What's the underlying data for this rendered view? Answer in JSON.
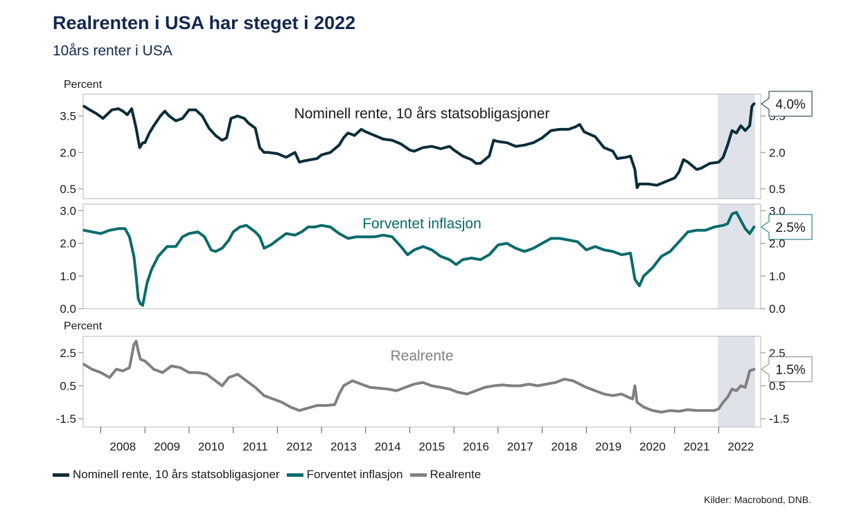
{
  "header": {
    "title": "Realrenten i USA har steget i 2022",
    "subtitle": "10års renter i USA"
  },
  "source": "Kilder: Macrobond, DNB.",
  "colors": {
    "nominal": "#0b2d3a",
    "inflation": "#0a6b6b",
    "real": "#808080",
    "highlight": "#dfe2e8",
    "frame": "#b5b5b5"
  },
  "highlight_period": [
    2021.98,
    2022.82
  ],
  "x_axis": {
    "range": [
      2007.6,
      2022.95
    ],
    "tick_labels": [
      "2008",
      "2009",
      "2010",
      "2011",
      "2012",
      "2013",
      "2014",
      "2015",
      "2016",
      "2017",
      "2018",
      "2019",
      "2020",
      "2021",
      "2022"
    ]
  },
  "legend": [
    {
      "key": "nominal",
      "label": "Nominell rente, 10 års statsobligasjoner"
    },
    {
      "key": "inflation",
      "label": "Forventet inflasjon"
    },
    {
      "key": "real",
      "label": "Realrente"
    }
  ],
  "chart_data": [
    {
      "type": "line",
      "ylabel": "Percent",
      "panel_label": "Nominell rente, 10 års statsobligasjoner",
      "series_key": "nominal",
      "end_label": "4.0%",
      "ylim": [
        0.1,
        4.4
      ],
      "y_ticks": [
        "0.5",
        "2.0",
        "3.5"
      ],
      "x": [
        2007.62,
        2007.75,
        2007.9,
        2008.05,
        2008.25,
        2008.4,
        2008.5,
        2008.6,
        2008.7,
        2008.8,
        2008.88,
        2008.95,
        2009.0,
        2009.1,
        2009.2,
        2009.35,
        2009.45,
        2009.55,
        2009.7,
        2009.85,
        2010.0,
        2010.15,
        2010.3,
        2010.45,
        2010.6,
        2010.75,
        2010.85,
        2010.95,
        2011.1,
        2011.25,
        2011.35,
        2011.5,
        2011.6,
        2011.7,
        2011.8,
        2012.0,
        2012.2,
        2012.4,
        2012.5,
        2012.6,
        2012.75,
        2012.9,
        2013.0,
        2013.2,
        2013.4,
        2013.5,
        2013.6,
        2013.75,
        2013.9,
        2014.0,
        2014.2,
        2014.4,
        2014.6,
        2014.8,
        2015.0,
        2015.1,
        2015.3,
        2015.5,
        2015.7,
        2015.9,
        2016.0,
        2016.2,
        2016.4,
        2016.5,
        2016.6,
        2016.8,
        2016.9,
        2017.0,
        2017.2,
        2017.4,
        2017.6,
        2017.8,
        2018.0,
        2018.2,
        2018.4,
        2018.6,
        2018.75,
        2018.85,
        2018.95,
        2019.2,
        2019.4,
        2019.6,
        2019.7,
        2019.9,
        2020.0,
        2020.1,
        2020.15,
        2020.2,
        2020.4,
        2020.6,
        2020.8,
        2021.0,
        2021.1,
        2021.2,
        2021.3,
        2021.5,
        2021.6,
        2021.8,
        2022.0,
        2022.1,
        2022.2,
        2022.3,
        2022.4,
        2022.5,
        2022.6,
        2022.7,
        2022.75,
        2022.8
      ],
      "y": [
        3.9,
        3.75,
        3.6,
        3.4,
        3.75,
        3.8,
        3.7,
        3.55,
        3.8,
        3.0,
        2.2,
        2.4,
        2.4,
        2.8,
        3.1,
        3.5,
        3.7,
        3.5,
        3.3,
        3.4,
        3.75,
        3.75,
        3.5,
        3.0,
        2.7,
        2.5,
        2.6,
        3.4,
        3.5,
        3.4,
        3.2,
        3.0,
        2.2,
        2.0,
        2.0,
        1.95,
        1.8,
        2.0,
        1.6,
        1.65,
        1.7,
        1.75,
        1.9,
        2.0,
        2.3,
        2.6,
        2.8,
        2.7,
        2.95,
        2.85,
        2.7,
        2.55,
        2.5,
        2.35,
        2.1,
        2.05,
        2.2,
        2.25,
        2.15,
        2.25,
        2.1,
        1.85,
        1.7,
        1.55,
        1.55,
        1.85,
        2.5,
        2.45,
        2.4,
        2.25,
        2.3,
        2.4,
        2.6,
        2.9,
        2.95,
        2.95,
        3.05,
        3.15,
        2.85,
        2.65,
        2.2,
        2.05,
        1.75,
        1.8,
        1.85,
        1.3,
        0.55,
        0.7,
        0.7,
        0.65,
        0.8,
        0.95,
        1.2,
        1.7,
        1.6,
        1.3,
        1.35,
        1.55,
        1.6,
        1.8,
        2.3,
        2.9,
        2.8,
        3.1,
        2.9,
        3.1,
        3.9,
        4.0
      ]
    },
    {
      "type": "line",
      "panel_label": "Forventet inflasjon",
      "series_key": "inflation",
      "end_label": "2.5%",
      "ylim": [
        0.0,
        3.2
      ],
      "y_ticks": [
        "0.0",
        "1.0",
        "2.0",
        "3.0"
      ],
      "x": [
        2007.62,
        2007.8,
        2008.0,
        2008.2,
        2008.4,
        2008.55,
        2008.65,
        2008.75,
        2008.8,
        2008.85,
        2008.9,
        2008.95,
        2009.05,
        2009.15,
        2009.3,
        2009.5,
        2009.7,
        2009.85,
        2010.0,
        2010.2,
        2010.35,
        2010.5,
        2010.6,
        2010.75,
        2010.9,
        2011.0,
        2011.15,
        2011.3,
        2011.5,
        2011.6,
        2011.7,
        2011.85,
        2012.0,
        2012.2,
        2012.4,
        2012.55,
        2012.7,
        2012.85,
        2013.0,
        2013.2,
        2013.4,
        2013.6,
        2013.8,
        2014.0,
        2014.2,
        2014.4,
        2014.6,
        2014.8,
        2014.95,
        2015.1,
        2015.3,
        2015.5,
        2015.7,
        2015.9,
        2016.05,
        2016.2,
        2016.4,
        2016.6,
        2016.8,
        2017.0,
        2017.2,
        2017.4,
        2017.6,
        2017.8,
        2018.0,
        2018.2,
        2018.4,
        2018.6,
        2018.8,
        2019.0,
        2019.2,
        2019.4,
        2019.6,
        2019.8,
        2020.0,
        2020.1,
        2020.2,
        2020.3,
        2020.5,
        2020.7,
        2020.9,
        2021.1,
        2021.3,
        2021.5,
        2021.7,
        2021.9,
        2022.1,
        2022.2,
        2022.3,
        2022.4,
        2022.5,
        2022.6,
        2022.7,
        2022.8
      ],
      "y": [
        2.4,
        2.35,
        2.3,
        2.4,
        2.45,
        2.45,
        2.2,
        1.6,
        1.0,
        0.3,
        0.15,
        0.1,
        0.8,
        1.2,
        1.6,
        1.9,
        1.9,
        2.2,
        2.3,
        2.35,
        2.2,
        1.8,
        1.75,
        1.85,
        2.1,
        2.35,
        2.5,
        2.55,
        2.35,
        2.2,
        1.85,
        1.95,
        2.1,
        2.3,
        2.25,
        2.35,
        2.5,
        2.5,
        2.55,
        2.5,
        2.3,
        2.15,
        2.2,
        2.2,
        2.2,
        2.25,
        2.2,
        1.9,
        1.65,
        1.8,
        1.9,
        1.8,
        1.6,
        1.5,
        1.35,
        1.5,
        1.55,
        1.5,
        1.65,
        1.95,
        2.0,
        1.85,
        1.75,
        1.85,
        2.0,
        2.15,
        2.15,
        2.1,
        2.05,
        1.8,
        1.9,
        1.8,
        1.75,
        1.65,
        1.7,
        0.9,
        0.7,
        1.0,
        1.25,
        1.6,
        1.75,
        2.05,
        2.35,
        2.4,
        2.4,
        2.5,
        2.55,
        2.6,
        2.9,
        2.95,
        2.7,
        2.45,
        2.3,
        2.5
      ]
    },
    {
      "type": "line",
      "ylabel": "Percent",
      "panel_label": "Realrente",
      "series_key": "real",
      "end_label": "1.5%",
      "ylim": [
        -2.0,
        3.5
      ],
      "y_ticks": [
        "-1.5",
        "0.5",
        "2.5"
      ],
      "x": [
        2007.62,
        2007.8,
        2008.0,
        2008.2,
        2008.35,
        2008.5,
        2008.65,
        2008.75,
        2008.8,
        2008.85,
        2008.9,
        2009.0,
        2009.2,
        2009.4,
        2009.6,
        2009.8,
        2010.0,
        2010.2,
        2010.4,
        2010.6,
        2010.75,
        2010.9,
        2011.1,
        2011.3,
        2011.5,
        2011.7,
        2011.9,
        2012.1,
        2012.3,
        2012.5,
        2012.7,
        2012.9,
        2013.1,
        2013.3,
        2013.4,
        2013.5,
        2013.7,
        2013.9,
        2014.1,
        2014.3,
        2014.5,
        2014.7,
        2014.9,
        2015.1,
        2015.3,
        2015.5,
        2015.7,
        2015.9,
        2016.1,
        2016.3,
        2016.5,
        2016.7,
        2016.9,
        2017.1,
        2017.3,
        2017.5,
        2017.7,
        2017.9,
        2018.1,
        2018.3,
        2018.5,
        2018.7,
        2018.85,
        2019.0,
        2019.2,
        2019.4,
        2019.6,
        2019.8,
        2019.95,
        2020.05,
        2020.1,
        2020.15,
        2020.3,
        2020.5,
        2020.7,
        2020.9,
        2021.1,
        2021.3,
        2021.5,
        2021.7,
        2021.9,
        2022.0,
        2022.1,
        2022.2,
        2022.3,
        2022.4,
        2022.5,
        2022.6,
        2022.7,
        2022.8
      ],
      "y": [
        1.8,
        1.5,
        1.3,
        1.0,
        1.5,
        1.4,
        1.6,
        3.0,
        3.2,
        2.6,
        2.1,
        2.0,
        1.5,
        1.3,
        1.7,
        1.6,
        1.3,
        1.3,
        1.2,
        0.8,
        0.5,
        1.0,
        1.2,
        0.8,
        0.4,
        -0.1,
        -0.3,
        -0.5,
        -0.8,
        -1.0,
        -0.85,
        -0.7,
        -0.7,
        -0.65,
        0.0,
        0.5,
        0.8,
        0.6,
        0.4,
        0.35,
        0.3,
        0.2,
        0.4,
        0.6,
        0.7,
        0.5,
        0.4,
        0.3,
        0.1,
        0.0,
        0.2,
        0.4,
        0.5,
        0.55,
        0.5,
        0.5,
        0.6,
        0.5,
        0.6,
        0.7,
        0.9,
        0.8,
        0.6,
        0.4,
        0.2,
        0.0,
        -0.1,
        0.0,
        -0.2,
        -0.3,
        0.5,
        -0.5,
        -0.8,
        -1.0,
        -1.1,
        -1.0,
        -1.05,
        -0.95,
        -1.0,
        -1.0,
        -1.0,
        -0.9,
        -0.5,
        -0.2,
        0.3,
        0.2,
        0.5,
        0.4,
        1.4,
        1.5
      ]
    }
  ]
}
